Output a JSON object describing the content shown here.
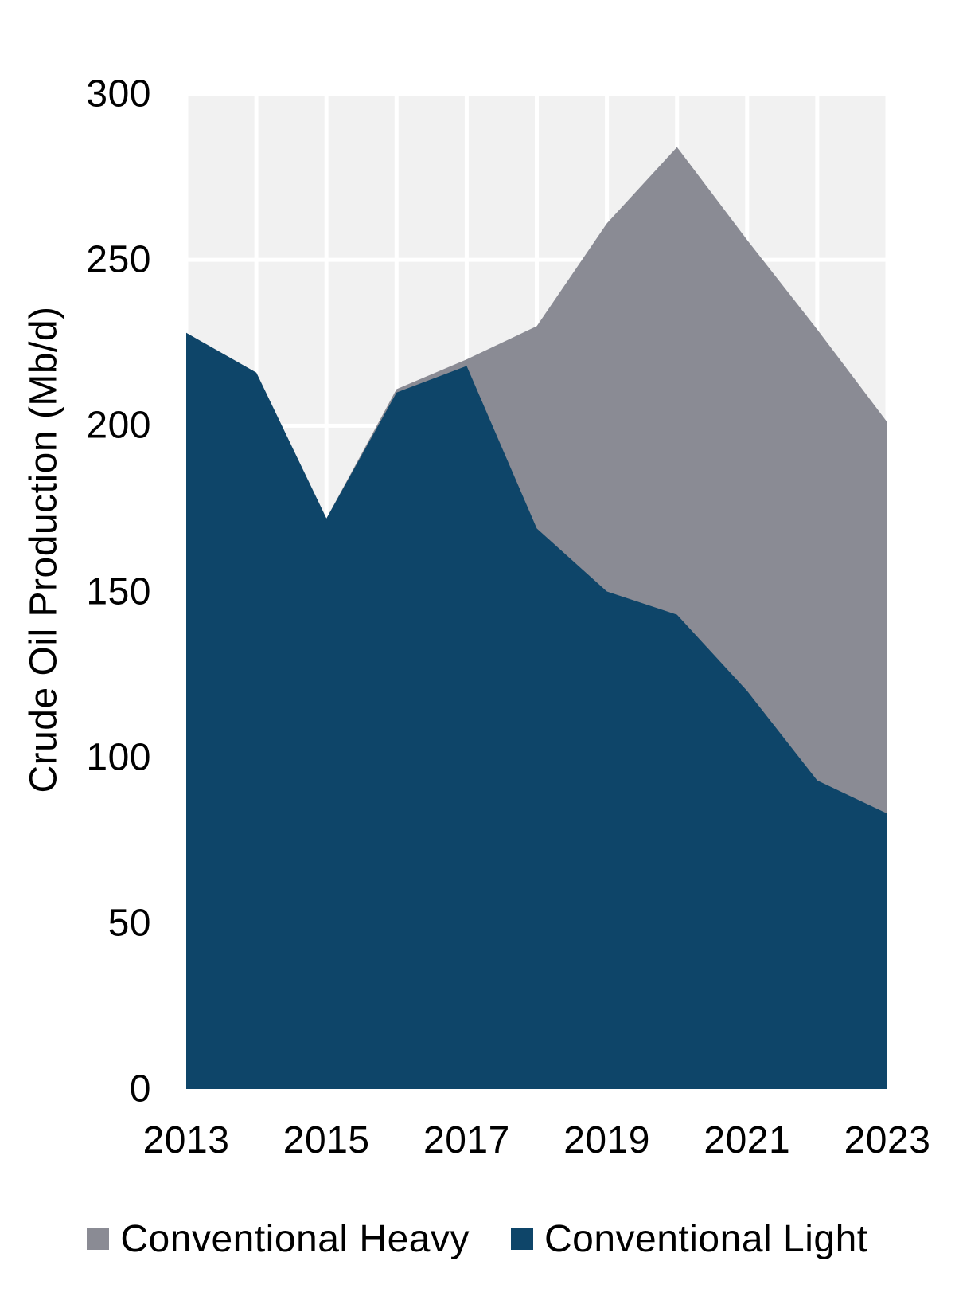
{
  "chart_data": {
    "type": "area",
    "stacked": true,
    "title": "",
    "xlabel": "",
    "ylabel": "Crude Oil Production (Mb/d)",
    "ylim": [
      0,
      300
    ],
    "y_tick_step": 50,
    "y_tick_labels": [
      "300",
      "250",
      "200",
      "150",
      "100",
      "50",
      "0"
    ],
    "x": [
      2013,
      2014,
      2015,
      2016,
      2017,
      2018,
      2019,
      2020,
      2021,
      2022,
      2023
    ],
    "x_tick_labels": [
      "2013",
      "2015",
      "2017",
      "2019",
      "2021",
      "2023"
    ],
    "grid": "white major gridlines on light gray panel, vertical line at every year, horizontal every 50",
    "legend_position": "bottom",
    "stack_order_bottom_to_top": [
      "Conventional Light",
      "Conventional Heavy"
    ],
    "series": [
      {
        "name": "Conventional Heavy",
        "color": "#8A8B94",
        "values": [
          0,
          0,
          0,
          1,
          2,
          61,
          111,
          141,
          136,
          136,
          118
        ]
      },
      {
        "name": "Conventional Light",
        "color": "#0E4569",
        "values": [
          228,
          216,
          172,
          210,
          218,
          169,
          150,
          143,
          120,
          93,
          83
        ]
      }
    ],
    "stacked_totals": [
      228,
      216,
      172,
      211,
      220,
      230,
      261,
      284,
      256,
      229,
      201
    ]
  },
  "legend": {
    "items": [
      {
        "label": "Conventional Heavy",
        "color": "#8A8B94"
      },
      {
        "label": "Conventional Light",
        "color": "#0E4569"
      }
    ]
  },
  "colors": {
    "page_bg": "#FFFFFF",
    "panel_bg": "#F1F1F1",
    "gridline": "#FFFFFF",
    "text": "#000000"
  }
}
